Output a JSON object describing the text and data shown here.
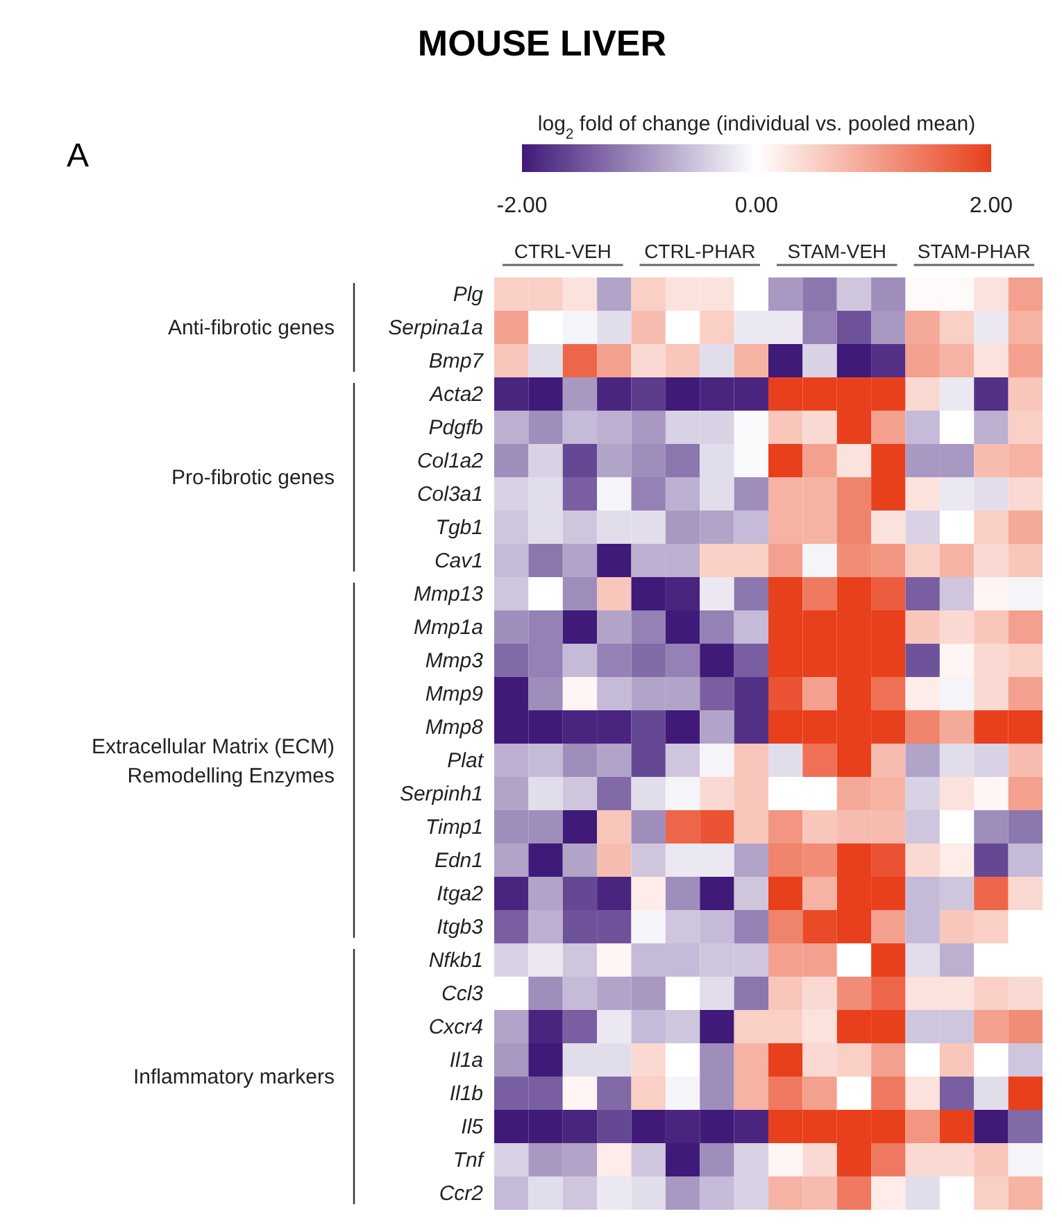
{
  "chart_data": {
    "type": "heatmap",
    "title": "MOUSE LIVER",
    "clabel": "log$_{2}$ fold of change (individual vs. pooled mean)",
    "clim": [
      -2,
      2
    ],
    "cticks": [
      {
        "value": -2,
        "label": "-2.00"
      },
      {
        "value": 0,
        "label": "0.00"
      },
      {
        "value": 2,
        "label": "2.00"
      }
    ],
    "annotations": [
      "A",
      "CTRL-VEH",
      "CTRL-PHAR",
      "STAM-VEH",
      "STAM-PHAR",
      "Anti-fibrotic genes",
      "Pro-fibrotic genes",
      "Extracellular Matrix (ECM)\nRemodelling Enzymes",
      "Inflammatory markers"
    ],
    "categories": [
      null,
      null,
      null,
      null,
      null,
      null,
      null,
      null,
      null,
      null,
      null,
      null,
      null,
      null,
      null,
      null
    ],
    "y_categories": [
      "Plg",
      "Serpina1a",
      "Bmp7",
      "Acta2",
      "Pdgfb",
      "Col1a2",
      "Col3a1",
      "Tgb1",
      "Cav1",
      "Mmp13",
      "Mmp1a",
      "Mmp3",
      "Mmp9",
      "Mmp8",
      "Plat",
      "Serpinh1",
      "Timp1",
      "Edn1",
      "Itga2",
      "Itgb3",
      "Nfkb1",
      "Ccl3",
      "Cxcr4",
      "Il1a",
      "Il1b",
      "Il5",
      "Tnf",
      "Ccr2"
    ],
    "cells": [
      [
        0.5,
        0.5,
        0.3,
        -0.8,
        0.5,
        0.3,
        0.3,
        0,
        -0.9,
        -1.2,
        -0.5,
        -1.0,
        0.05,
        0.05,
        0.3,
        1.0
      ],
      [
        1.0,
        0,
        -0.1,
        -0.3,
        0.7,
        0,
        0.5,
        -0.2,
        -0.2,
        -1.1,
        -1.5,
        -0.9,
        0.9,
        0.5,
        -0.2,
        0.8
      ],
      [
        0.6,
        -0.3,
        1.6,
        1.0,
        0.4,
        0.6,
        -0.3,
        0.8,
        -2,
        -0.4,
        -2,
        -1.8,
        1.0,
        0.8,
        0.3,
        1.0
      ],
      [
        -1.9,
        -2,
        -0.9,
        -1.9,
        -1.7,
        -2,
        -1.9,
        -1.9,
        2,
        2,
        2,
        2,
        0.4,
        -0.2,
        -1.8,
        0.6
      ],
      [
        -0.7,
        -1.0,
        -0.6,
        -0.7,
        -0.9,
        -0.4,
        -0.4,
        -0.05,
        0.6,
        0.4,
        2,
        1.0,
        -0.6,
        0,
        -0.7,
        0.5
      ],
      [
        -1.0,
        -0.4,
        -1.6,
        -0.8,
        -1.0,
        -1.2,
        -0.3,
        -0.05,
        2,
        1.0,
        0.3,
        2,
        -0.9,
        -0.9,
        0.7,
        0.8
      ],
      [
        -0.4,
        -0.3,
        -1.4,
        -0.1,
        -1.1,
        -0.7,
        -0.3,
        -1.0,
        0.8,
        0.8,
        1.3,
        2,
        0.3,
        -0.2,
        -0.3,
        0.4
      ],
      [
        -0.5,
        -0.3,
        -0.5,
        -0.3,
        -0.3,
        -0.9,
        -0.8,
        -0.6,
        0.8,
        0.8,
        1.3,
        0.3,
        -0.4,
        0,
        0.5,
        0.9
      ],
      [
        -0.6,
        -1.2,
        -0.8,
        -2,
        -0.7,
        -0.7,
        0.5,
        0.5,
        1.0,
        -0.1,
        1.2,
        1.1,
        0.5,
        0.8,
        0.4,
        0.6
      ],
      [
        -0.5,
        0,
        -1.0,
        0.6,
        -2,
        -1.9,
        -0.2,
        -1.2,
        2,
        1.4,
        2,
        1.7,
        -1.4,
        -0.5,
        0.1,
        -0.1
      ],
      [
        -1.0,
        -1.1,
        -2,
        -0.8,
        -1.1,
        -2,
        -1.1,
        -0.6,
        2,
        2,
        2,
        2,
        0.6,
        0.4,
        0.6,
        1.0
      ],
      [
        -1.3,
        -1.1,
        -0.6,
        -1.1,
        -1.3,
        -1.1,
        -2,
        -1.4,
        2,
        2,
        2,
        2,
        -1.5,
        0.1,
        0.4,
        0.5
      ],
      [
        -2,
        -1.0,
        0.1,
        -0.6,
        -0.8,
        -0.8,
        -1.4,
        -1.8,
        1.8,
        1.0,
        2,
        1.5,
        0.2,
        -0.1,
        0.4,
        1.0
      ],
      [
        -2,
        -2,
        -1.9,
        -1.9,
        -1.6,
        -2,
        -0.8,
        -1.8,
        2,
        2,
        2,
        2,
        1.3,
        0.9,
        2,
        2
      ],
      [
        -0.7,
        -0.6,
        -1.0,
        -0.8,
        -1.6,
        -0.5,
        -0.1,
        0.6,
        -0.3,
        1.5,
        2,
        0.7,
        -0.8,
        -0.3,
        -0.4,
        0.7
      ],
      [
        -0.8,
        -0.3,
        -0.5,
        -1.3,
        -0.3,
        -0.1,
        0.4,
        0.6,
        0,
        0,
        0.9,
        0.8,
        -0.4,
        0.3,
        0.1,
        1.0
      ],
      [
        -1.0,
        -1.0,
        -2,
        0.6,
        -1.0,
        1.6,
        1.8,
        0.6,
        1.1,
        0.6,
        0.7,
        0.7,
        -0.5,
        0,
        -1.0,
        -1.2
      ],
      [
        -0.8,
        -2,
        -0.8,
        0.7,
        -0.5,
        -0.2,
        -0.2,
        -0.8,
        1.3,
        1.2,
        2,
        1.8,
        0.4,
        0.2,
        -1.6,
        -0.6
      ],
      [
        -1.9,
        -0.8,
        -1.6,
        -1.9,
        0.2,
        -1.0,
        -2,
        -0.5,
        2,
        0.8,
        2,
        2,
        -0.6,
        -0.5,
        1.6,
        0.4
      ],
      [
        -1.4,
        -0.7,
        -1.5,
        -1.5,
        -0.1,
        -0.5,
        -0.6,
        -1.1,
        1.3,
        1.9,
        2,
        1.0,
        -0.6,
        0.6,
        0.5,
        0
      ],
      [
        -0.4,
        -0.2,
        -0.5,
        0.1,
        -0.6,
        -0.6,
        -0.5,
        -0.5,
        1.0,
        1.0,
        0,
        2,
        -0.3,
        -0.7,
        0,
        0
      ],
      [
        0,
        -1.0,
        -0.6,
        -0.8,
        -0.9,
        0,
        -0.3,
        -1.2,
        0.6,
        0.4,
        1.2,
        1.6,
        0.3,
        0.3,
        0.5,
        0.4
      ],
      [
        -0.8,
        -1.9,
        -1.4,
        -0.2,
        -0.6,
        -0.5,
        -2,
        0.5,
        0.5,
        0.3,
        2,
        2,
        -0.5,
        -0.5,
        1.0,
        1.2
      ],
      [
        -0.9,
        -2,
        -0.3,
        -0.3,
        0.4,
        0,
        -1.0,
        0.8,
        2,
        0.4,
        0.5,
        1.0,
        0,
        0.6,
        0,
        -0.5
      ],
      [
        -1.4,
        -1.4,
        0.1,
        -1.3,
        0.5,
        -0.1,
        -1.0,
        0.8,
        1.4,
        1.0,
        0,
        1.4,
        0.3,
        -1.4,
        -0.3,
        2
      ],
      [
        -2,
        -2,
        -1.9,
        -1.6,
        -2,
        -1.9,
        -2,
        -1.9,
        2,
        2,
        2,
        2,
        1.1,
        2,
        -2,
        -1.3
      ],
      [
        -0.4,
        -0.9,
        -0.8,
        0.2,
        -0.5,
        -2,
        -1.0,
        -0.4,
        0.1,
        0.4,
        2,
        1.4,
        0.4,
        0.4,
        0.6,
        -0.1
      ],
      [
        -0.6,
        -0.3,
        -0.5,
        -0.2,
        -0.3,
        -0.9,
        -0.6,
        -0.4,
        0.8,
        0.7,
        1.4,
        0.2,
        -0.3,
        0,
        0.5,
        0.8
      ]
    ]
  }
}
